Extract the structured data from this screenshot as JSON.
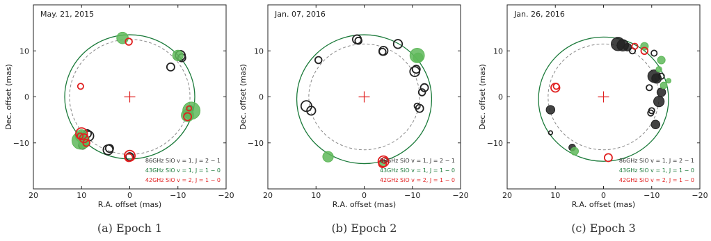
{
  "chart_data": [
    {
      "type": "scatter",
      "title": "May. 21, 2015",
      "caption": "(a) Epoch 1",
      "xlabel": "R.A. offset (mas)",
      "ylabel": "Dec. offset (mas)",
      "xlim": [
        20,
        -20
      ],
      "ylim": [
        -20,
        20
      ],
      "xticks": [
        20,
        10,
        0,
        -10,
        -20
      ],
      "yticks": [
        -10,
        0,
        10
      ],
      "fit_circles": [
        {
          "name": "solid",
          "color": "#1b7a3a",
          "cx": 0,
          "cy": 0,
          "r": 13.5
        },
        {
          "name": "dashed",
          "color": "#888888",
          "cx": 0,
          "cy": 0,
          "r": 12.5
        }
      ],
      "series": [
        {
          "name": "86GHz SiO v=1, J=2-1",
          "color": "#222222",
          "filled": false,
          "points": [
            [
              -10.5,
              9.0,
              1.0
            ],
            [
              -10.8,
              8.5,
              0.8
            ],
            [
              -8.5,
              6.5,
              0.8
            ],
            [
              -12.5,
              -2.5,
              0.6
            ],
            [
              -12.2,
              -3.5,
              0.6
            ],
            [
              8.5,
              -8.5,
              1.0
            ],
            [
              8.8,
              -8.0,
              0.8
            ],
            [
              4.5,
              -11.5,
              1.0
            ],
            [
              4.2,
              -11.2,
              0.8
            ],
            [
              9.8,
              -10.5,
              0.8
            ],
            [
              0.0,
              -13.0,
              0.8
            ]
          ]
        },
        {
          "name": "43GHz SiO v=1, J=1-0",
          "color": "#5fb85a",
          "filled": true,
          "points": [
            [
              1.5,
              12.8,
              1.2
            ],
            [
              -10.0,
              9.0,
              1.1
            ],
            [
              -12.8,
              -3.0,
              1.8
            ],
            [
              -12.0,
              -4.0,
              1.3
            ],
            [
              10.2,
              -9.5,
              1.8
            ],
            [
              10.0,
              -8.5,
              1.3
            ],
            [
              9.5,
              -10.0,
              1.1
            ]
          ]
        },
        {
          "name": "42GHz SiO v=2, J=1-0",
          "color": "#e02020",
          "filled": false,
          "points": [
            [
              0.2,
              12.0,
              0.7
            ],
            [
              10.2,
              2.3,
              0.6
            ],
            [
              10.0,
              -8.0,
              1.2
            ],
            [
              9.5,
              -9.0,
              0.9
            ],
            [
              9.0,
              -10.0,
              0.7
            ],
            [
              10.3,
              -8.5,
              0.6
            ],
            [
              -12.0,
              -4.3,
              0.8
            ],
            [
              -12.3,
              -2.5,
              0.5
            ],
            [
              0.0,
              -12.8,
              1.1
            ],
            [
              0.2,
              -13.2,
              0.8
            ]
          ]
        }
      ],
      "center_marker": {
        "x": 0,
        "y": 0,
        "color": "#e02020"
      },
      "legend": [
        "86GHz SiO v = 1, J = 2 − 1",
        "43GHz SiO v = 1, J = 1 − 0",
        "42GHz SiO v = 2, J = 1 − 0"
      ],
      "legend_colors": [
        "#333333",
        "#1b7a3a",
        "#e02020"
      ]
    },
    {
      "type": "scatter",
      "title": "Jan. 07, 2016",
      "caption": "(b) Epoch 2",
      "xlabel": "R.A. offset (mas)",
      "ylabel": "Dec. offset (mas)",
      "xlim": [
        20,
        -20
      ],
      "ylim": [
        -20,
        20
      ],
      "xticks": [
        20,
        10,
        0,
        -10,
        -20
      ],
      "yticks": [
        -10,
        0,
        10
      ],
      "fit_circles": [
        {
          "name": "solid",
          "color": "#1b7a3a",
          "cx": 0,
          "cy": -0.5,
          "r": 14.0
        },
        {
          "name": "dashed",
          "color": "#888888",
          "cx": 0,
          "cy": 0,
          "r": 11.5
        }
      ],
      "series": [
        {
          "name": "86GHz SiO v=1, J=2-1",
          "color": "#222222",
          "filled": false,
          "points": [
            [
              1.5,
              12.5,
              0.9
            ],
            [
              1.2,
              12.2,
              0.7
            ],
            [
              -4.0,
              10.0,
              0.9
            ],
            [
              -3.8,
              9.8,
              0.7
            ],
            [
              -7.0,
              11.5,
              0.9
            ],
            [
              9.5,
              8.0,
              0.7
            ],
            [
              -10.5,
              5.5,
              1.0
            ],
            [
              -10.8,
              6.0,
              0.8
            ],
            [
              -12.5,
              2.0,
              0.8
            ],
            [
              -12.0,
              1.0,
              0.7
            ],
            [
              -11.5,
              -2.5,
              0.8
            ],
            [
              -11.0,
              -2.0,
              0.6
            ],
            [
              11.0,
              -3.0,
              0.9
            ],
            [
              12.0,
              -2.0,
              1.1
            ]
          ]
        },
        {
          "name": "43GHz SiO v=1, J=1-0",
          "color": "#5fb85a",
          "filled": true,
          "points": [
            [
              -11.0,
              9.0,
              1.5
            ],
            [
              -11.2,
              8.5,
              1.0
            ],
            [
              7.5,
              -13.0,
              1.1
            ],
            [
              -3.8,
              -14.5,
              0.8
            ]
          ]
        },
        {
          "name": "42GHz SiO v=2, J=1-0",
          "color": "#e02020",
          "filled": false,
          "points": [
            [
              -4.0,
              -14.0,
              1.1
            ],
            [
              -3.8,
              -14.5,
              0.8
            ],
            [
              -4.2,
              -13.8,
              0.6
            ]
          ]
        }
      ],
      "center_marker": {
        "x": 0,
        "y": 0,
        "color": "#e02020"
      },
      "legend": [
        "86GHz SiO v = 1, J = 2 − 1",
        "43GHz SiO v = 1, J = 1 − 0",
        "42GHz SiO v = 2, J = 1 − 0"
      ],
      "legend_colors": [
        "#333333",
        "#1b7a3a",
        "#e02020"
      ]
    },
    {
      "type": "scatter",
      "title": "Jan. 26, 2016",
      "caption": "(c) Epoch 3",
      "xlabel": "R.A. offset (mas)",
      "ylabel": "Dec. offset (mas)",
      "xlim": [
        20,
        -20
      ],
      "ylim": [
        -20,
        20
      ],
      "xticks": [
        20,
        10,
        0,
        -10,
        -20
      ],
      "yticks": [
        -10,
        0,
        10
      ],
      "fit_circles": [
        {
          "name": "solid",
          "color": "#1b7a3a",
          "cx": 0,
          "cy": -0.5,
          "r": 13.5
        },
        {
          "name": "dashed",
          "color": "#888888",
          "cx": 0,
          "cy": 0,
          "r": 11.5
        }
      ],
      "series": [
        {
          "name": "86GHz SiO v=1, J=2-1",
          "color": "#222222",
          "filled": true,
          "points": [
            [
              -3.0,
              11.5,
              1.4
            ],
            [
              -4.0,
              11.2,
              1.2
            ],
            [
              -5.0,
              10.8,
              0.8
            ],
            [
              -10.5,
              4.5,
              1.3
            ],
            [
              -11.0,
              4.0,
              1.0
            ],
            [
              -11.5,
              -1.0,
              1.1
            ],
            [
              -12.0,
              1.0,
              0.9
            ],
            [
              -10.8,
              -6.0,
              0.9
            ],
            [
              11.0,
              -2.8,
              0.9
            ],
            [
              6.5,
              -11.0,
              0.7
            ]
          ]
        },
        {
          "name": "86GHz SiO v=1, J=2-1 (open)",
          "color": "#222222",
          "filled": false,
          "points": [
            [
              -6.0,
              10.0,
              0.6
            ],
            [
              -10.5,
              9.5,
              0.6
            ],
            [
              -9.5,
              2.0,
              0.6
            ],
            [
              -10.0,
              -3.0,
              0.6
            ],
            [
              -9.8,
              -3.5,
              0.6
            ],
            [
              11.0,
              -7.8,
              0.4
            ],
            [
              -12.0,
              4.5,
              0.6
            ]
          ]
        },
        {
          "name": "43GHz SiO v=1, J=1-0",
          "color": "#5fb85a",
          "filled": true,
          "points": [
            [
              -8.5,
              11.0,
              0.8
            ],
            [
              -12.0,
              8.0,
              0.8
            ],
            [
              -12.5,
              2.5,
              0.7
            ],
            [
              -13.5,
              3.5,
              0.5
            ],
            [
              -11.5,
              6.0,
              0.6
            ],
            [
              6.0,
              -11.8,
              0.8
            ]
          ]
        },
        {
          "name": "42GHz SiO v=2, J=1-0",
          "color": "#e02020",
          "filled": false,
          "points": [
            [
              10.0,
              2.0,
              0.9
            ],
            [
              9.8,
              2.3,
              0.6
            ],
            [
              -6.5,
              11.0,
              0.6
            ],
            [
              -8.5,
              10.0,
              0.7
            ],
            [
              -1.0,
              -13.2,
              0.8
            ]
          ]
        }
      ],
      "center_marker": {
        "x": 0,
        "y": 0,
        "color": "#e02020"
      },
      "legend": [
        "86GHz SiO v = 1, J = 2 − 1",
        "43GHz SiO v = 1, J = 1 − 0",
        "42GHz SiO v = 2, J = 1 − 0"
      ],
      "legend_colors": [
        "#333333",
        "#1b7a3a",
        "#e02020"
      ]
    }
  ]
}
